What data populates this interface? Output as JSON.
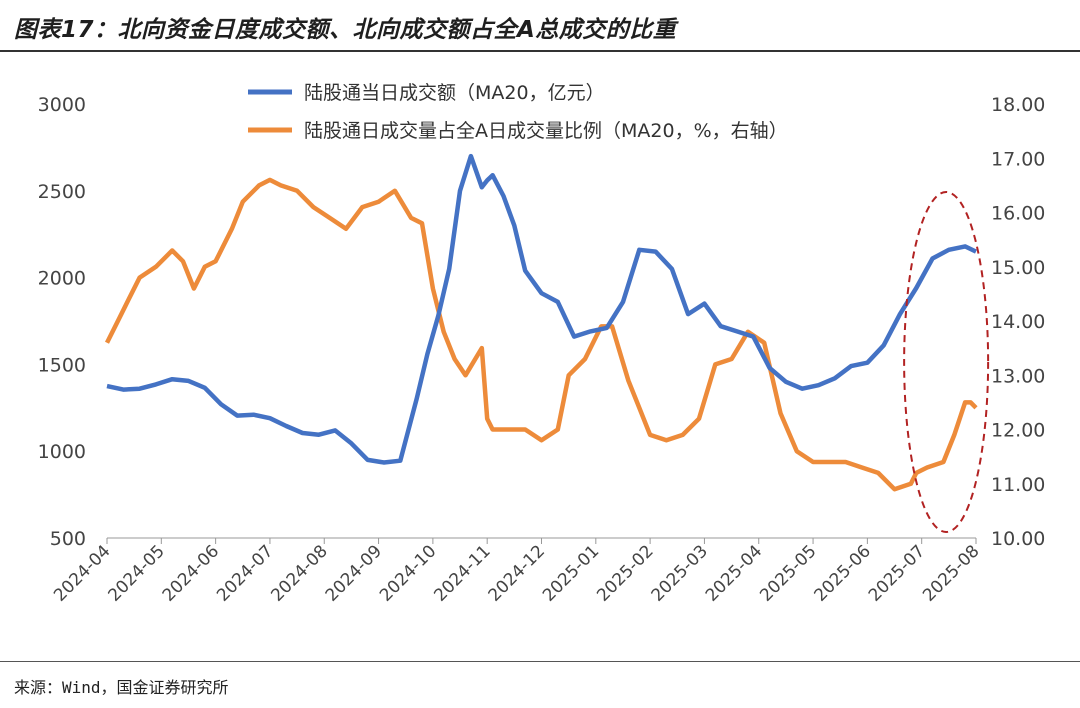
{
  "header": {
    "title": "图表17：北向资金日度成交额、北向成交额占全A总成交的比重"
  },
  "footer": {
    "source": "来源：Wind，国金证券研究所"
  },
  "colors": {
    "series1": "#4472c4",
    "series2": "#ed8b3a",
    "ellipse": "#b22222",
    "axis_text": "#444444"
  },
  "chart_data": {
    "type": "line",
    "title": "图表17：北向资金日度成交额、北向成交额占全A总成交的比重",
    "x_ticks": [
      "2024-04",
      "2024-05",
      "2024-06",
      "2024-07",
      "2024-08",
      "2024-09",
      "2024-10",
      "2024-11",
      "2024-12",
      "2025-01",
      "2025-02",
      "2025-03",
      "2025-04",
      "2025-05",
      "2025-06",
      "2025-07",
      "2025-08"
    ],
    "x_range": [
      0,
      16
    ],
    "y_left": {
      "range": [
        500,
        3000
      ],
      "ticks": [
        "3000",
        "2500",
        "2000",
        "1500",
        "1000",
        "500"
      ]
    },
    "y_right": {
      "range": [
        10,
        18
      ],
      "ticks": [
        "18.00",
        "17.00",
        "16.00",
        "15.00",
        "14.00",
        "13.00",
        "12.00",
        "11.00",
        "10.00"
      ]
    },
    "legend_position": "top-center",
    "grid": false,
    "annotation": "dashed ellipse highlighting 2025-07 to 2025-08",
    "series": [
      {
        "name": "陆股通当日成交额（MA20，亿元）",
        "axis": "left",
        "x": [
          0,
          0.3,
          0.6,
          0.9,
          1.2,
          1.5,
          1.8,
          2.1,
          2.4,
          2.7,
          3.0,
          3.3,
          3.6,
          3.9,
          4.2,
          4.5,
          4.8,
          5.1,
          5.4,
          5.7,
          5.9,
          6.1,
          6.3,
          6.5,
          6.7,
          6.9,
          7.0,
          7.1,
          7.3,
          7.5,
          7.7,
          8.0,
          8.3,
          8.6,
          8.9,
          9.2,
          9.5,
          9.8,
          10.1,
          10.4,
          10.7,
          11.0,
          11.3,
          11.6,
          11.9,
          12.2,
          12.5,
          12.8,
          13.1,
          13.4,
          13.7,
          14.0,
          14.3,
          14.6,
          14.9,
          15.2,
          15.5,
          15.8,
          16.0
        ],
        "y": [
          1375,
          1355,
          1360,
          1385,
          1415,
          1405,
          1365,
          1270,
          1205,
          1210,
          1190,
          1145,
          1105,
          1095,
          1120,
          1045,
          950,
          935,
          945,
          1300,
          1560,
          1780,
          2050,
          2500,
          2700,
          2520,
          2560,
          2590,
          2470,
          2300,
          2040,
          1910,
          1860,
          1660,
          1690,
          1710,
          1860,
          2160,
          2150,
          2050,
          1790,
          1850,
          1720,
          1690,
          1660,
          1480,
          1400,
          1360,
          1380,
          1420,
          1490,
          1510,
          1610,
          1790,
          1940,
          2110,
          2160,
          2180,
          2150
        ]
      },
      {
        "name": "陆股通日成交量占全A日成交量比例（MA20，%，右轴）",
        "axis": "right",
        "x": [
          0,
          0.2,
          0.4,
          0.6,
          0.9,
          1.2,
          1.4,
          1.6,
          1.8,
          2.0,
          2.3,
          2.5,
          2.8,
          3.0,
          3.2,
          3.5,
          3.8,
          4.1,
          4.4,
          4.7,
          5.0,
          5.3,
          5.6,
          5.8,
          6.0,
          6.2,
          6.4,
          6.6,
          6.9,
          7.0,
          7.1,
          7.4,
          7.7,
          8.0,
          8.3,
          8.5,
          8.8,
          9.1,
          9.3,
          9.6,
          9.8,
          10.0,
          10.3,
          10.6,
          10.9,
          11.2,
          11.5,
          11.8,
          12.1,
          12.4,
          12.7,
          13.0,
          13.3,
          13.6,
          13.9,
          14.2,
          14.5,
          14.8,
          14.9,
          15.1,
          15.4,
          15.6,
          15.8,
          15.9,
          16.0
        ],
        "y": [
          13.6,
          14.0,
          14.4,
          14.8,
          15.0,
          15.3,
          15.1,
          14.6,
          15.0,
          15.1,
          15.7,
          16.2,
          16.5,
          16.6,
          16.5,
          16.4,
          16.1,
          15.9,
          15.7,
          16.1,
          16.2,
          16.4,
          15.9,
          15.8,
          14.6,
          13.8,
          13.3,
          13.0,
          13.5,
          12.2,
          12.0,
          12.0,
          12.0,
          11.8,
          12.0,
          13.0,
          13.3,
          13.9,
          13.9,
          12.9,
          12.4,
          11.9,
          11.8,
          11.9,
          12.2,
          13.2,
          13.3,
          13.8,
          13.6,
          12.3,
          11.6,
          11.4,
          11.4,
          11.4,
          11.3,
          11.2,
          10.9,
          11.0,
          11.2,
          11.3,
          11.4,
          11.9,
          12.5,
          12.5,
          12.4
        ]
      }
    ]
  }
}
